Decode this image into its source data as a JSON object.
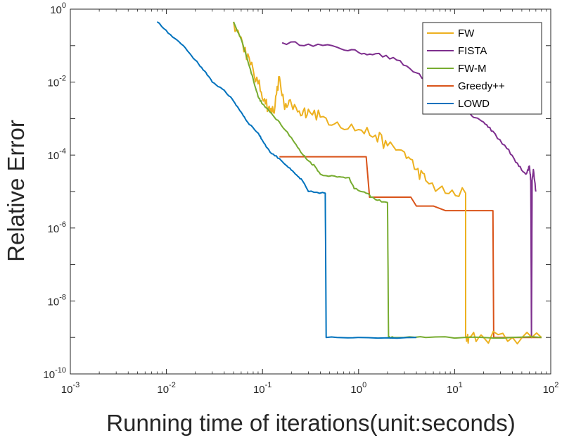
{
  "chart_data": {
    "type": "line",
    "xscale": "log",
    "yscale": "log",
    "xlabel": "Running time of iterations(unit:seconds)",
    "ylabel": "Relative Error",
    "xlim": [
      0.001,
      100
    ],
    "ylim": [
      1e-10,
      1
    ],
    "xticks": [
      {
        "base": "10",
        "exp": "-3",
        "value": 0.001
      },
      {
        "base": "10",
        "exp": "-2",
        "value": 0.01
      },
      {
        "base": "10",
        "exp": "-1",
        "value": 0.1
      },
      {
        "base": "10",
        "exp": "0",
        "value": 1
      },
      {
        "base": "10",
        "exp": "1",
        "value": 10
      },
      {
        "base": "10",
        "exp": "2",
        "value": 100
      }
    ],
    "yticks": [
      {
        "base": "10",
        "exp": "-10",
        "value": 1e-10
      },
      {
        "base": "10",
        "exp": "-8",
        "value": 1e-08
      },
      {
        "base": "10",
        "exp": "-6",
        "value": 1e-06
      },
      {
        "base": "10",
        "exp": "-4",
        "value": 0.0001
      },
      {
        "base": "10",
        "exp": "-2",
        "value": 0.01
      },
      {
        "base": "10",
        "exp": "0",
        "value": 1
      }
    ],
    "legend_position": "top-right",
    "series": [
      {
        "name": "FW",
        "color": "#EDB120",
        "noise": 0.35,
        "points": [
          [
            0.05,
            0.45
          ],
          [
            0.062,
            0.12
          ],
          [
            0.075,
            0.03
          ],
          [
            0.09,
            0.009
          ],
          [
            0.105,
            0.0035
          ],
          [
            0.12,
            0.0015
          ],
          [
            0.135,
            0.0022
          ],
          [
            0.15,
            0.014
          ],
          [
            0.17,
            0.0018
          ],
          [
            0.2,
            0.0025
          ],
          [
            0.25,
            0.0012
          ],
          [
            0.3,
            0.0018
          ],
          [
            0.4,
            0.0011
          ],
          [
            0.6,
            0.0008
          ],
          [
            1.0,
            0.0005
          ],
          [
            1.5,
            0.00035
          ],
          [
            2.0,
            0.00018
          ],
          [
            3.0,
            0.00012
          ],
          [
            4.0,
            4e-05
          ],
          [
            5.0,
            2e-05
          ],
          [
            8.0,
            9e-06
          ],
          [
            13.0,
            9e-06
          ],
          [
            13.0,
            1e-09
          ],
          [
            14.0,
            1e-09
          ],
          [
            20.0,
            1e-09
          ],
          [
            40.0,
            1e-09
          ],
          [
            80.0,
            1e-09
          ]
        ]
      },
      {
        "name": "FISTA",
        "color": "#7E2F8E",
        "noise": 0.1,
        "points": [
          [
            0.16,
            0.12
          ],
          [
            0.3,
            0.11
          ],
          [
            0.6,
            0.09
          ],
          [
            1.0,
            0.065
          ],
          [
            1.5,
            0.06
          ],
          [
            2.5,
            0.04
          ],
          [
            4.0,
            0.018
          ],
          [
            6.0,
            0.007
          ],
          [
            10.0,
            0.003
          ],
          [
            15.0,
            0.0012
          ],
          [
            20.0,
            0.0008
          ],
          [
            25.0,
            0.00045
          ],
          [
            35.0,
            0.00015
          ],
          [
            45.0,
            6e-05
          ],
          [
            55.0,
            3e-05
          ],
          [
            60.0,
            5e-05
          ],
          [
            62.0,
            2e-05
          ],
          [
            63.0,
            1e-09
          ],
          [
            64.0,
            2e-05
          ],
          [
            66.0,
            4e-05
          ],
          [
            70.0,
            1e-05
          ]
        ]
      },
      {
        "name": "FW-M",
        "color": "#77AC30",
        "noise": 0.05,
        "points": [
          [
            0.05,
            0.45
          ],
          [
            0.06,
            0.15
          ],
          [
            0.07,
            0.04
          ],
          [
            0.08,
            0.012
          ],
          [
            0.09,
            0.004
          ],
          [
            0.1,
            0.0025
          ],
          [
            0.12,
            0.0015
          ],
          [
            0.15,
            0.0008
          ],
          [
            0.2,
            0.0003
          ],
          [
            0.25,
            0.00012
          ],
          [
            0.3,
            7e-05
          ],
          [
            0.35,
            5e-05
          ],
          [
            0.4,
            3e-05
          ],
          [
            0.6,
            2.5e-05
          ],
          [
            0.8,
            2.4e-05
          ],
          [
            0.9,
            1.2e-05
          ],
          [
            1.2,
            9e-06
          ],
          [
            1.5,
            6e-06
          ],
          [
            2.0,
            5e-06
          ],
          [
            2.05,
            1e-09
          ],
          [
            2.3,
            1e-09
          ],
          [
            5.0,
            1e-09
          ],
          [
            20.0,
            1e-09
          ],
          [
            80.0,
            1e-09
          ]
        ]
      },
      {
        "name": "Greedy++",
        "color": "#D95319",
        "noise": 0,
        "points": [
          [
            0.15,
            9e-05
          ],
          [
            1.2,
            9e-05
          ],
          [
            1.3,
            7e-06
          ],
          [
            3.5,
            7e-06
          ],
          [
            4.0,
            4e-06
          ],
          [
            6.0,
            4e-06
          ],
          [
            8.0,
            3e-06
          ],
          [
            25.0,
            3e-06
          ],
          [
            25.5,
            1e-09
          ],
          [
            80.0,
            1e-09
          ]
        ]
      },
      {
        "name": "LOWD",
        "color": "#0072BD",
        "noise": 0.04,
        "points": [
          [
            0.008,
            0.45
          ],
          [
            0.011,
            0.2
          ],
          [
            0.015,
            0.1
          ],
          [
            0.02,
            0.04
          ],
          [
            0.025,
            0.02
          ],
          [
            0.03,
            0.01
          ],
          [
            0.04,
            0.006
          ],
          [
            0.05,
            0.003
          ],
          [
            0.06,
            0.0015
          ],
          [
            0.07,
            0.0008
          ],
          [
            0.09,
            0.0004
          ],
          [
            0.1,
            0.00025
          ],
          [
            0.12,
            0.00012
          ],
          [
            0.15,
            8e-05
          ],
          [
            0.18,
            5e-05
          ],
          [
            0.22,
            3e-05
          ],
          [
            0.26,
            2e-05
          ],
          [
            0.3,
            1e-05
          ],
          [
            0.45,
            9e-06
          ],
          [
            0.46,
            1e-09
          ],
          [
            1.0,
            1e-09
          ],
          [
            4.0,
            1e-09
          ]
        ]
      }
    ]
  }
}
